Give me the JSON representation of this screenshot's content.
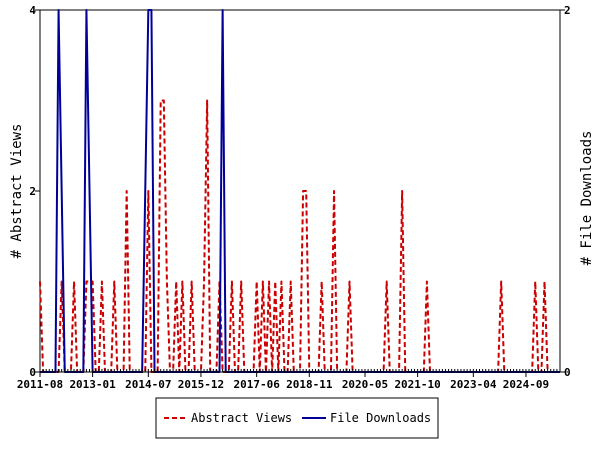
{
  "chart_data": {
    "type": "line",
    "x_axis": {
      "tick_labels": [
        "2011-08",
        "2013-01",
        "2014-07",
        "2015-12",
        "2017-06",
        "2018-11",
        "2020-05",
        "2021-10",
        "2023-04",
        "2024-09"
      ],
      "range": [
        "2011-08",
        "2025-08"
      ]
    },
    "y_left": {
      "label": "# Abstract Views",
      "ylim": [
        0,
        4
      ],
      "ticks": [
        "0",
        "2",
        "4"
      ]
    },
    "y_right": {
      "label": "# File Downloads",
      "ylim": [
        0,
        2
      ],
      "ticks": [
        "0",
        "2"
      ]
    },
    "grid": false,
    "legend_position": "bottom",
    "series": [
      {
        "name": "Abstract Views",
        "axis": "left",
        "color": "#cc0000",
        "style": "dashed",
        "points": [
          [
            "2011-08",
            1
          ],
          [
            "2011-09",
            0
          ],
          [
            "2012-03",
            1
          ],
          [
            "2012-05",
            0
          ],
          [
            "2012-07",
            1
          ],
          [
            "2012-08",
            0
          ],
          [
            "2012-11",
            1
          ],
          [
            "2012-12",
            1
          ],
          [
            "2013-01",
            1
          ],
          [
            "2013-02",
            0
          ],
          [
            "2013-04",
            1
          ],
          [
            "2013-05",
            0
          ],
          [
            "2013-08",
            1
          ],
          [
            "2013-09",
            0
          ],
          [
            "2013-12",
            2
          ],
          [
            "2014-01",
            0
          ],
          [
            "2014-04",
            0
          ],
          [
            "2014-07",
            2
          ],
          [
            "2014-08",
            0
          ],
          [
            "2014-09",
            0
          ],
          [
            "2014-11",
            3
          ],
          [
            "2014-12",
            3
          ],
          [
            "2015-01",
            1
          ],
          [
            "2015-02",
            0
          ],
          [
            "2015-03",
            0
          ],
          [
            "2015-04",
            1
          ],
          [
            "2015-05",
            0
          ],
          [
            "2015-06",
            1
          ],
          [
            "2015-07",
            0
          ],
          [
            "2015-08",
            0
          ],
          [
            "2015-09",
            1
          ],
          [
            "2015-10",
            0
          ],
          [
            "2016-01",
            1
          ],
          [
            "2016-02",
            3
          ],
          [
            "2016-03",
            0
          ],
          [
            "2016-06",
            1
          ],
          [
            "2016-07",
            0
          ],
          [
            "2016-10",
            1
          ],
          [
            "2016-11",
            0
          ],
          [
            "2017-01",
            1
          ],
          [
            "2017-02",
            0
          ],
          [
            "2017-06",
            1
          ],
          [
            "2017-07",
            0
          ],
          [
            "2017-08",
            1
          ],
          [
            "2017-09",
            0
          ],
          [
            "2017-10",
            1
          ],
          [
            "2017-11",
            0
          ],
          [
            "2017-12",
            1
          ],
          [
            "2018-01",
            0
          ],
          [
            "2018-02",
            1
          ],
          [
            "2018-03",
            0
          ],
          [
            "2018-05",
            1
          ],
          [
            "2018-06",
            0
          ],
          [
            "2018-09",
            2
          ],
          [
            "2018-10",
            2
          ],
          [
            "2018-11",
            0
          ],
          [
            "2019-03",
            1
          ],
          [
            "2019-04",
            0
          ],
          [
            "2019-07",
            2
          ],
          [
            "2019-08",
            0
          ],
          [
            "2019-12",
            1
          ],
          [
            "2020-01",
            0
          ],
          [
            "2020-12",
            1
          ],
          [
            "2021-01",
            0
          ],
          [
            "2021-05",
            2
          ],
          [
            "2021-06",
            0
          ],
          [
            "2022-01",
            1
          ],
          [
            "2022-02",
            0
          ],
          [
            "2024-01",
            1
          ],
          [
            "2024-02",
            0
          ],
          [
            "2024-12",
            1
          ],
          [
            "2025-01",
            0
          ],
          [
            "2025-03",
            1
          ],
          [
            "2025-04",
            0
          ]
        ]
      },
      {
        "name": "File Downloads",
        "axis": "right",
        "color": "#000099",
        "style": "solid",
        "points": [
          [
            "2012-02",
            2
          ],
          [
            "2012-03",
            1
          ],
          [
            "2012-04",
            0
          ],
          [
            "2012-11",
            2
          ],
          [
            "2012-12",
            1
          ],
          [
            "2013-01",
            0
          ],
          [
            "2014-06",
            1
          ],
          [
            "2014-07",
            2
          ],
          [
            "2014-08",
            2
          ],
          [
            "2014-09",
            0
          ],
          [
            "2016-07",
            2
          ],
          [
            "2016-08",
            0
          ]
        ]
      }
    ]
  }
}
